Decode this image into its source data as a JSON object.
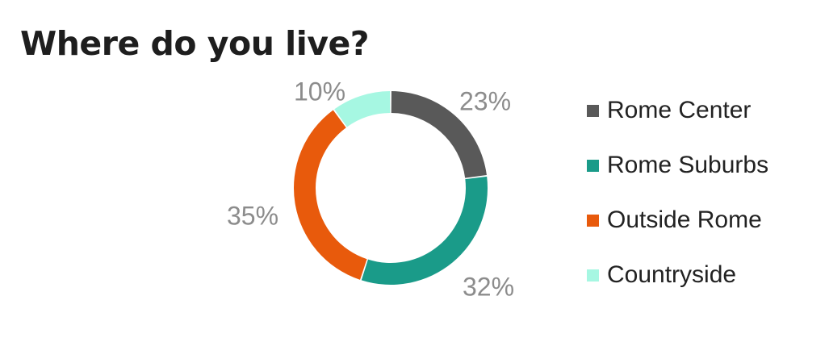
{
  "title": "Where do you live?",
  "chart_data": {
    "type": "pie",
    "donut": true,
    "title": "Where do you live?",
    "categories": [
      "Rome Center",
      "Rome Suburbs",
      "Outside Rome",
      "Countryside"
    ],
    "values": [
      23,
      32,
      35,
      10
    ],
    "labels": [
      "23%",
      "32%",
      "35%",
      "10%"
    ],
    "colors": [
      "#595959",
      "#1a9b89",
      "#e85a0c",
      "#a6f7e2"
    ],
    "legend_position": "right",
    "legend": [
      {
        "label": "Rome Center",
        "color": "#595959"
      },
      {
        "label": "Rome Suburbs",
        "color": "#1a9b89"
      },
      {
        "label": "Outside Rome",
        "color": "#e85a0c"
      },
      {
        "label": "Countryside",
        "color": "#a6f7e2"
      }
    ]
  }
}
